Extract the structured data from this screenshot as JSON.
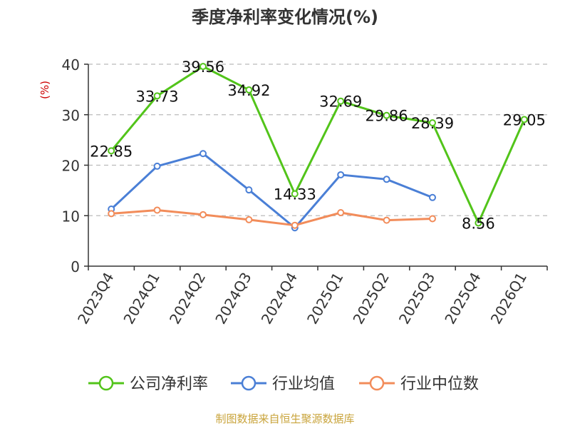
{
  "chart_data": {
    "type": "line",
    "title": "季度净利率变化情况(%)",
    "ylabel": "(%)",
    "ylim": [
      0,
      40
    ],
    "yticks": [
      0,
      10,
      20,
      30,
      40
    ],
    "grid": true,
    "legend_position": "bottom",
    "categories": [
      "2023Q4",
      "2024Q1",
      "2024Q2",
      "2024Q3",
      "2024Q4",
      "2025Q1",
      "2025Q2",
      "2025Q3",
      "2025Q4",
      "2026Q1"
    ],
    "series": [
      {
        "name": "公司净利率",
        "color": "#52c41a",
        "values": [
          22.85,
          33.73,
          39.56,
          34.92,
          14.33,
          32.69,
          29.86,
          28.39,
          8.56,
          29.05
        ],
        "labels": [
          "22.85",
          "33.73",
          "39.56",
          "34.92",
          "14.33",
          "32.69",
          "29.86",
          "28.39",
          "8.56",
          "29.05"
        ]
      },
      {
        "name": "行业均值",
        "color": "#4a7fd6",
        "values": [
          11.3,
          19.8,
          22.3,
          15.1,
          7.6,
          18.1,
          17.2,
          13.6,
          null,
          null
        ]
      },
      {
        "name": "行业中位数",
        "color": "#f28c5a",
        "values": [
          10.4,
          11.1,
          10.2,
          9.2,
          8.1,
          10.6,
          9.1,
          9.4,
          null,
          null
        ]
      }
    ]
  },
  "source": "制图数据来自恒生聚源数据库",
  "colors": {
    "axis": "#333333",
    "grid": "#bbbbbb",
    "ylabel": "#cc0000",
    "source_text": "#c9a43c"
  }
}
